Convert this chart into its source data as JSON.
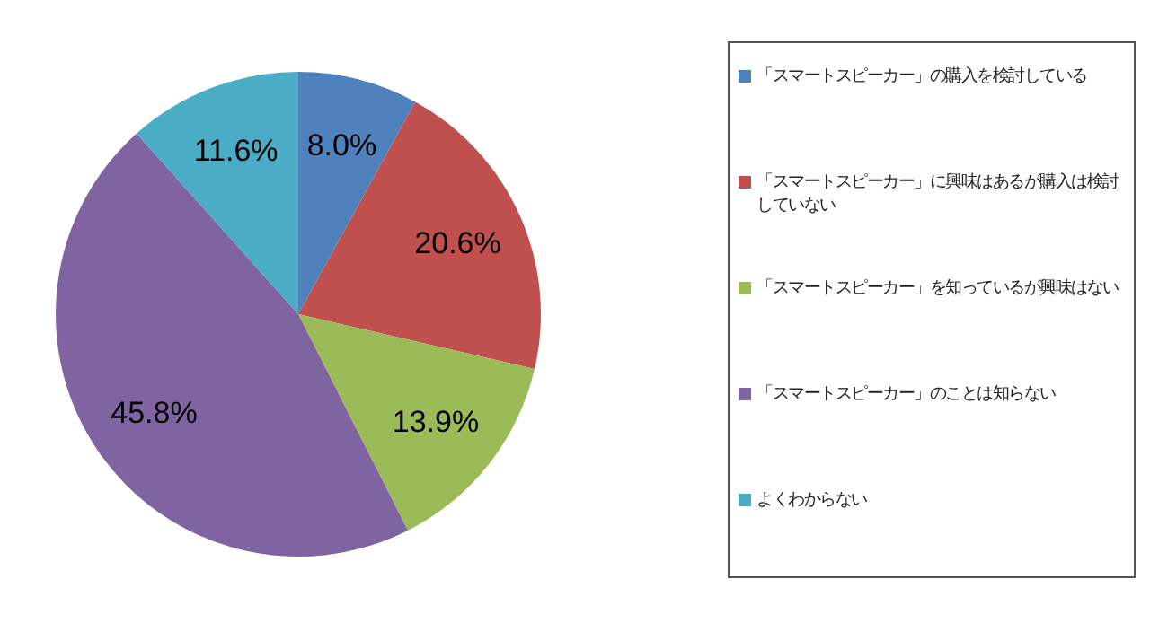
{
  "chart_data": {
    "type": "pie",
    "categories": [
      "「スマートスピーカー」の購入を検討している",
      "「スマートスピーカー」に興味はあるが購入は検討していない",
      "「スマートスピーカー」を知っているが興味はない",
      "「スマートスピーカー」のことは知らない",
      "よくわからない"
    ],
    "values": [
      8.0,
      20.6,
      13.9,
      45.8,
      11.6
    ],
    "colors": [
      "#4f81bd",
      "#c0504d",
      "#9bbb59",
      "#8064a2",
      "#4bacc6"
    ],
    "value_labels": [
      "8.0%",
      "20.6%",
      "13.9%",
      "45.8%",
      "11.6%"
    ],
    "legend": "right"
  }
}
